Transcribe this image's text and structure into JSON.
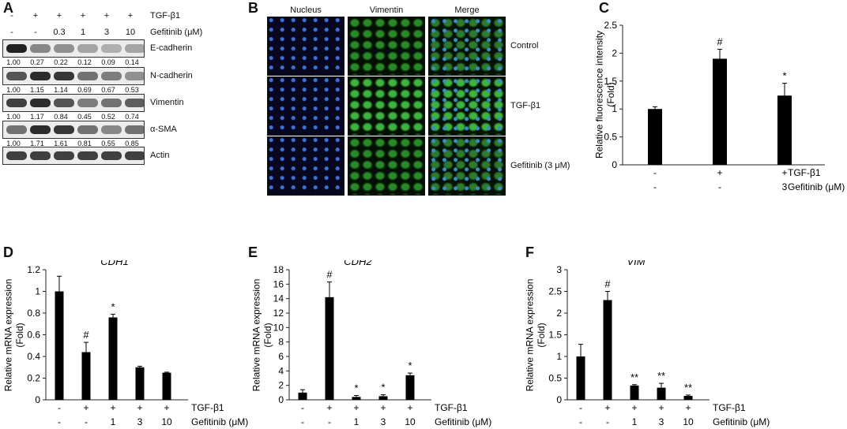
{
  "panels": {
    "A": "A",
    "B": "B",
    "C": "C",
    "D": "D",
    "E": "E",
    "F": "F"
  },
  "panelA": {
    "treat_header": [
      {
        "tgf": "-",
        "gef": "-"
      },
      {
        "tgf": "+",
        "gef": "-"
      },
      {
        "tgf": "+",
        "gef": "0.3"
      },
      {
        "tgf": "+",
        "gef": "1"
      },
      {
        "tgf": "+",
        "gef": "3"
      },
      {
        "tgf": "+",
        "gef": "10"
      }
    ],
    "tgf_label": "TGF-β1",
    "gef_label": "Gefitinib (μM)",
    "proteins": [
      {
        "name": "E-cadherin",
        "values": [
          "1.00",
          "0.27",
          "0.22",
          "0.12",
          "0.09",
          "0.14"
        ],
        "intensity": [
          1.0,
          0.5,
          0.45,
          0.35,
          0.3,
          0.35
        ]
      },
      {
        "name": "N-cadherin",
        "values": [
          "1.00",
          "1.15",
          "1.14",
          "0.69",
          "0.67",
          "0.53"
        ],
        "intensity": [
          0.75,
          0.95,
          0.9,
          0.6,
          0.55,
          0.45
        ]
      },
      {
        "name": "Vimentin",
        "values": [
          "1.00",
          "1.17",
          "0.84",
          "0.45",
          "0.52",
          "0.74"
        ],
        "intensity": [
          0.85,
          0.95,
          0.75,
          0.55,
          0.6,
          0.7
        ]
      },
      {
        "name": "α-SMA",
        "values": [
          "1.00",
          "1.71",
          "1.61",
          "0.81",
          "0.55",
          "0.85"
        ],
        "intensity": [
          0.6,
          0.95,
          0.9,
          0.6,
          0.5,
          0.6
        ]
      },
      {
        "name": "Actin",
        "values": [],
        "intensity": [
          0.85,
          0.85,
          0.85,
          0.85,
          0.85,
          0.85
        ]
      }
    ]
  },
  "panelB": {
    "columns": [
      "Nucleus",
      "Vimentin",
      "Merge"
    ],
    "rows": [
      "Control",
      "TGF-β1",
      "Gefitinib (3 μM)"
    ]
  },
  "chart_data": [
    {
      "id": "C",
      "type": "bar",
      "title": "",
      "ylabel": "Relative fluorescence intensity (Fold)",
      "ylim": [
        0,
        2.5
      ],
      "yticks": [
        "0",
        "0.5",
        "1",
        "1.5",
        "2",
        "2.5"
      ],
      "ytick_vals": [
        0,
        0.5,
        1,
        1.5,
        2,
        2.5
      ],
      "values": [
        1.0,
        1.9,
        1.24
      ],
      "errors": [
        0.04,
        0.17,
        0.22
      ],
      "marks": [
        "",
        "#",
        "*"
      ],
      "rows": [
        {
          "label": "TGF-β1",
          "values": [
            "-",
            "+",
            "+"
          ]
        },
        {
          "label": "Gefitinib (μM)",
          "values": [
            "-",
            "-",
            "3"
          ]
        }
      ]
    },
    {
      "id": "D",
      "type": "bar",
      "title": "CDH1",
      "ylabel": "Relative mRNA expression (Fold)",
      "ylim": [
        0,
        1.2
      ],
      "yticks": [
        "0",
        "0.2",
        "0.4",
        "0.6",
        "0.8",
        "1",
        "1.2"
      ],
      "ytick_vals": [
        0,
        0.2,
        0.4,
        0.6,
        0.8,
        1,
        1.2
      ],
      "values": [
        1.0,
        0.44,
        0.76,
        0.3,
        0.25
      ],
      "errors": [
        0.14,
        0.09,
        0.03,
        0.01,
        0.005
      ],
      "marks": [
        "",
        "#",
        "*",
        "",
        ""
      ],
      "rows": [
        {
          "label": "TGF-β1",
          "values": [
            "-",
            "+",
            "+",
            "+",
            "+"
          ]
        },
        {
          "label": "Gefitinib (μM)",
          "values": [
            "-",
            "-",
            "1",
            "3",
            "10"
          ]
        }
      ]
    },
    {
      "id": "E",
      "type": "bar",
      "title": "CDH2",
      "ylabel": "Relative mRNA expression (Fold)",
      "ylim": [
        0,
        18
      ],
      "yticks": [
        "0",
        "2",
        "4",
        "6",
        "8",
        "10",
        "12",
        "14",
        "16",
        "18"
      ],
      "ytick_vals": [
        0,
        2,
        4,
        6,
        8,
        10,
        12,
        14,
        16,
        18
      ],
      "values": [
        1.0,
        14.2,
        0.4,
        0.5,
        3.4
      ],
      "errors": [
        0.4,
        2.1,
        0.2,
        0.2,
        0.3
      ],
      "marks": [
        "",
        "#",
        "*",
        "*",
        "*"
      ],
      "rows": [
        {
          "label": "TGF-β1",
          "values": [
            "-",
            "+",
            "+",
            "+",
            "+"
          ]
        },
        {
          "label": "Gefitinib (μM)",
          "values": [
            "-",
            "-",
            "1",
            "3",
            "10"
          ]
        }
      ]
    },
    {
      "id": "F",
      "type": "bar",
      "title": "VIM",
      "ylabel": "Relative mRNA expression (Fold)",
      "ylim": [
        0,
        3
      ],
      "yticks": [
        "0",
        "0.5",
        "1",
        "1.5",
        "2",
        "2.5",
        "3"
      ],
      "ytick_vals": [
        0,
        0.5,
        1,
        1.5,
        2,
        2.5,
        3
      ],
      "values": [
        1.0,
        2.3,
        0.33,
        0.28,
        0.09
      ],
      "errors": [
        0.28,
        0.2,
        0.02,
        0.1,
        0.02
      ],
      "marks": [
        "",
        "#",
        "**",
        "**",
        "**"
      ],
      "rows": [
        {
          "label": "TGF-β1",
          "values": [
            "-",
            "+",
            "+",
            "+",
            "+"
          ]
        },
        {
          "label": "Gefitinib (μM)",
          "values": [
            "-",
            "-",
            "1",
            "3",
            "10"
          ]
        }
      ]
    }
  ]
}
